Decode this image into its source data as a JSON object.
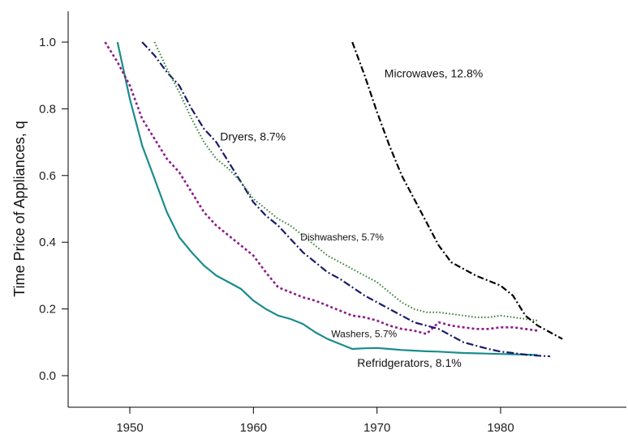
{
  "chart_data": {
    "type": "line",
    "title": "",
    "xlabel": "",
    "ylabel": "Time Price of Appliances, q",
    "xlim": [
      1945,
      1990
    ],
    "ylim": [
      -0.1,
      1.1
    ],
    "x_ticks": [
      1950,
      1960,
      1970,
      1980
    ],
    "y_ticks": [
      0.0,
      0.2,
      0.4,
      0.6,
      0.8,
      1.0
    ],
    "y_tick_labels": [
      "0.0",
      "0.2",
      "0.4",
      "0.6",
      "0.8",
      "1.0"
    ],
    "grid": false,
    "legend": "none",
    "series": [
      {
        "name": "Refridgerators, 8.1%",
        "color": "#1a8c8c",
        "style": "solid",
        "x": [
          1949,
          1950,
          1951,
          1952,
          1953,
          1954,
          1955,
          1956,
          1957,
          1958,
          1959,
          1960,
          1961,
          1962,
          1963,
          1964,
          1965,
          1966,
          1967,
          1968,
          1969,
          1970,
          1971,
          1972,
          1973,
          1974,
          1975,
          1976,
          1977,
          1978,
          1979,
          1980,
          1981,
          1982,
          1983
        ],
        "y": [
          1.0,
          0.83,
          0.69,
          0.59,
          0.49,
          0.415,
          0.37,
          0.33,
          0.3,
          0.28,
          0.26,
          0.225,
          0.2,
          0.18,
          0.17,
          0.155,
          0.13,
          0.11,
          0.095,
          0.08,
          0.082,
          0.083,
          0.08,
          0.077,
          0.075,
          0.073,
          0.072,
          0.07,
          0.068,
          0.067,
          0.066,
          0.065,
          0.064,
          0.063,
          0.062
        ]
      },
      {
        "name": "Washers, 5.7%",
        "color": "#8b1a8b",
        "style": "dotted",
        "x": [
          1948,
          1949,
          1950,
          1951,
          1952,
          1953,
          1954,
          1955,
          1956,
          1957,
          1958,
          1959,
          1960,
          1961,
          1962,
          1963,
          1964,
          1965,
          1966,
          1967,
          1968,
          1969,
          1970,
          1971,
          1972,
          1973,
          1974,
          1975,
          1976,
          1977,
          1978,
          1979,
          1980,
          1981,
          1982,
          1983
        ],
        "y": [
          1.0,
          0.94,
          0.87,
          0.77,
          0.71,
          0.65,
          0.61,
          0.55,
          0.49,
          0.45,
          0.42,
          0.39,
          0.36,
          0.31,
          0.265,
          0.25,
          0.235,
          0.225,
          0.21,
          0.195,
          0.18,
          0.175,
          0.165,
          0.15,
          0.14,
          0.135,
          0.125,
          0.16,
          0.15,
          0.145,
          0.14,
          0.14,
          0.145,
          0.145,
          0.14,
          0.135
        ]
      },
      {
        "name": "Dryers, 8.7%",
        "color": "#1a1a6b",
        "style": "dashdot",
        "x": [
          1951,
          1952,
          1953,
          1954,
          1955,
          1956,
          1957,
          1958,
          1959,
          1960,
          1961,
          1962,
          1963,
          1964,
          1965,
          1966,
          1967,
          1968,
          1969,
          1970,
          1971,
          1972,
          1973,
          1974,
          1975,
          1976,
          1977,
          1978,
          1979,
          1980,
          1981,
          1982,
          1983,
          1984
        ],
        "y": [
          1.0,
          0.96,
          0.91,
          0.87,
          0.8,
          0.74,
          0.7,
          0.64,
          0.58,
          0.52,
          0.48,
          0.45,
          0.41,
          0.37,
          0.34,
          0.31,
          0.29,
          0.265,
          0.24,
          0.22,
          0.2,
          0.18,
          0.16,
          0.15,
          0.14,
          0.12,
          0.1,
          0.09,
          0.08,
          0.072,
          0.068,
          0.063,
          0.06,
          0.058
        ]
      },
      {
        "name": "Dishwashers, 5.7%",
        "color": "#2e7d32",
        "style": "dotted-fine",
        "x": [
          1952,
          1953,
          1954,
          1955,
          1956,
          1957,
          1958,
          1959,
          1960,
          1961,
          1962,
          1963,
          1964,
          1965,
          1966,
          1967,
          1968,
          1969,
          1970,
          1971,
          1972,
          1973,
          1974,
          1975,
          1976,
          1977,
          1978,
          1979,
          1980,
          1981,
          1982,
          1983
        ],
        "y": [
          1.0,
          0.92,
          0.85,
          0.77,
          0.7,
          0.65,
          0.62,
          0.58,
          0.53,
          0.5,
          0.47,
          0.45,
          0.42,
          0.39,
          0.36,
          0.34,
          0.32,
          0.3,
          0.28,
          0.25,
          0.22,
          0.2,
          0.19,
          0.19,
          0.185,
          0.18,
          0.175,
          0.175,
          0.18,
          0.175,
          0.17,
          0.165
        ]
      },
      {
        "name": "Microwaves, 12.8%",
        "color": "#000000",
        "style": "dashdot-long",
        "x": [
          1968,
          1969,
          1970,
          1971,
          1972,
          1973,
          1974,
          1975,
          1976,
          1977,
          1978,
          1979,
          1980,
          1981,
          1982,
          1983,
          1984,
          1985
        ],
        "y": [
          1.0,
          0.9,
          0.79,
          0.69,
          0.6,
          0.53,
          0.46,
          0.39,
          0.34,
          0.32,
          0.3,
          0.285,
          0.27,
          0.24,
          0.18,
          0.15,
          0.13,
          0.11
        ]
      }
    ],
    "annotations": [
      {
        "text": "Microwaves, 12.8%",
        "x": 1970.6,
        "y": 0.895,
        "size": "normal"
      },
      {
        "text": "Dryers, 8.7%",
        "x": 1957.3,
        "y": 0.705,
        "size": "normal"
      },
      {
        "text": "Dishwashers, 5.7%",
        "x": 1963.8,
        "y": 0.405,
        "size": "small"
      },
      {
        "text": "Washers, 5.7%",
        "x": 1966.3,
        "y": 0.115,
        "size": "small"
      },
      {
        "text": "Refridgerators, 8.1%",
        "x": 1968.4,
        "y": 0.027,
        "size": "normal"
      }
    ]
  }
}
